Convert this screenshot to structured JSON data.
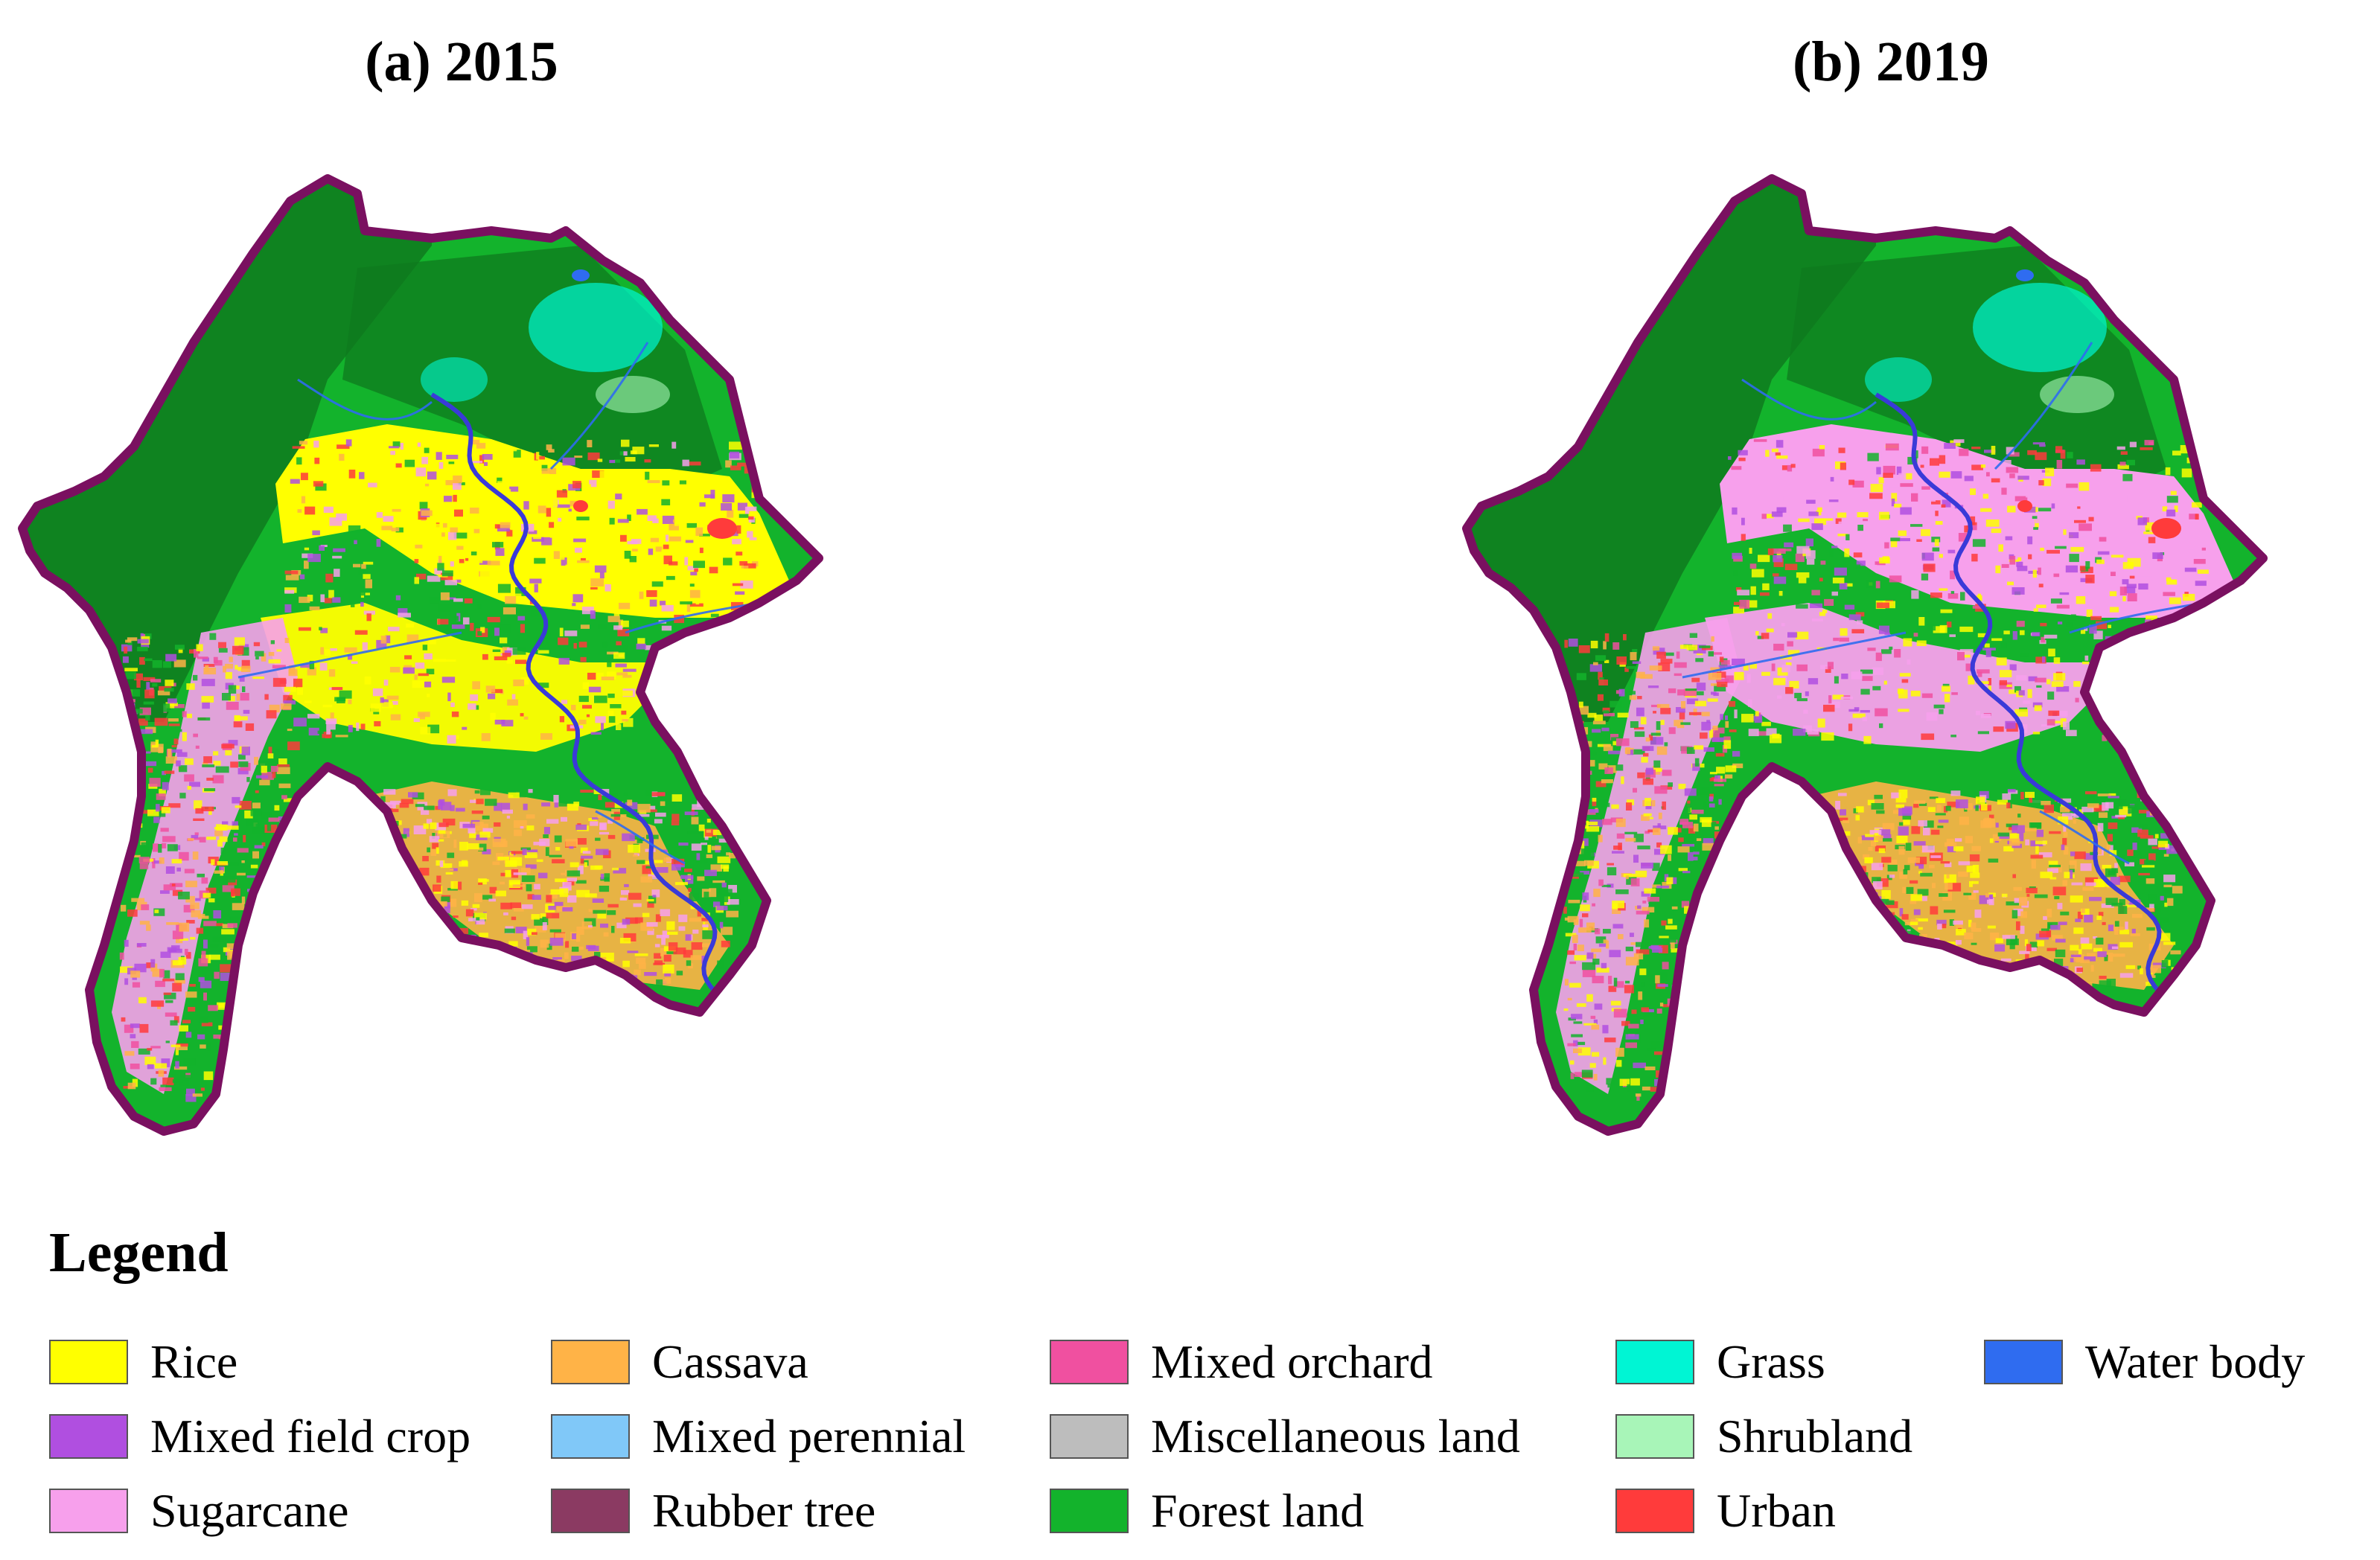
{
  "panels": [
    {
      "title": "(a) 2015"
    },
    {
      "title": "(b) 2019"
    }
  ],
  "legend": {
    "title": "Legend",
    "items": [
      {
        "label": "Rice",
        "color": "#ffff00"
      },
      {
        "label": "Mixed field crop",
        "color": "#b04fe0"
      },
      {
        "label": "Sugarcane",
        "color": "#f7a0ec"
      },
      {
        "label": "Cassava",
        "color": "#ffb347"
      },
      {
        "label": "Mixed perennial",
        "color": "#80c8f8"
      },
      {
        "label": "Rubber tree",
        "color": "#8b3a62"
      },
      {
        "label": "Mixed orchard",
        "color": "#f050a0"
      },
      {
        "label": "Miscellaneous land",
        "color": "#bdbdbd"
      },
      {
        "label": "Forest land",
        "color": "#13b32c"
      },
      {
        "label": "Grass",
        "color": "#00f5d4"
      },
      {
        "label": "Shrubland",
        "color": "#a8f5b8"
      },
      {
        "label": "Urban",
        "color": "#ff3b3b"
      },
      {
        "label": "Water body",
        "color": "#2f6cf0"
      }
    ]
  },
  "colors": {
    "boundary": "#7a1060",
    "forest_dark": "#0f7a1e",
    "river": "#3a3ad8"
  }
}
